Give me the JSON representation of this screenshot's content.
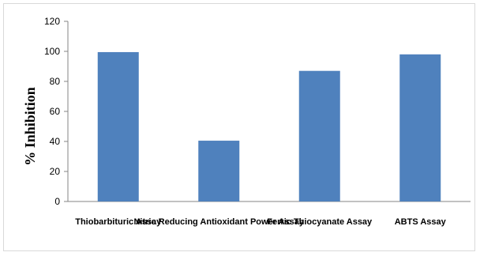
{
  "chart_data": {
    "type": "bar",
    "categories": [
      "Thiobarbituric Assay",
      "Nitric Reducing Antioxidant Power Assay",
      "Ferric Thiocyanate Assay",
      "ABTS Assay"
    ],
    "values": [
      99.5,
      40.5,
      87,
      98
    ],
    "ylabel": "% Inhibition",
    "ylim": [
      0,
      120
    ],
    "yticks": [
      0,
      20,
      40,
      60,
      80,
      100,
      120
    ],
    "grid": false,
    "bar_color": "#4f81bd"
  }
}
